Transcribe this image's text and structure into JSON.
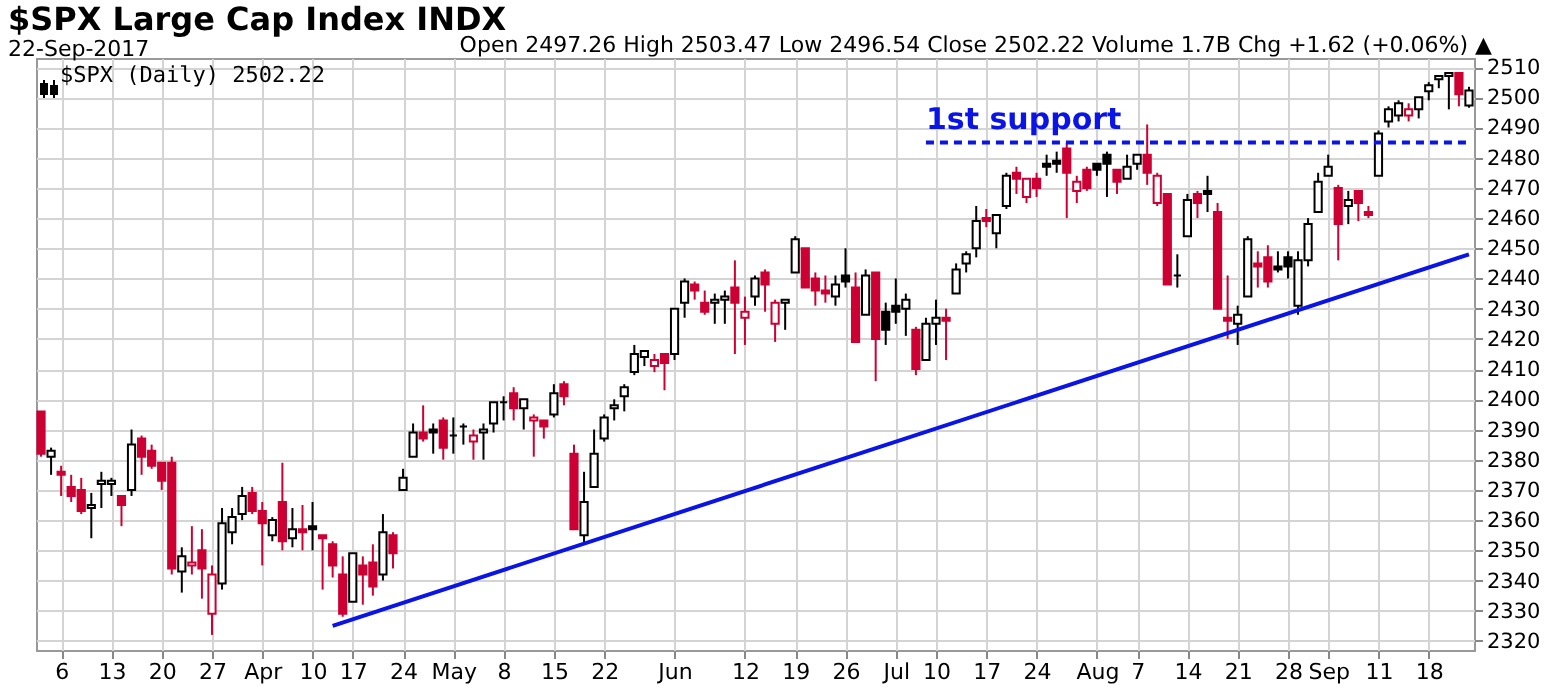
{
  "chart_data": {
    "type": "candlestick",
    "title": "$SPX Large Cap Index INDX",
    "subtitle": "22-Sep-2017",
    "annotations": [
      "Open 2497.26 High 2503.47 Low 2496.54 Close 2502.22 Volume 1.7B Chg +1.62 (+0.06%) ▲",
      "$SPX (Daily) 2502.22"
    ],
    "categories": [
      null,
      null,
      "6",
      null,
      null,
      null,
      null,
      "13",
      null,
      null,
      null,
      null,
      "20",
      null,
      null,
      null,
      null,
      "27",
      null,
      null,
      null,
      null,
      "Apr",
      null,
      null,
      null,
      null,
      "10",
      null,
      null,
      null,
      "17",
      null,
      null,
      null,
      null,
      "24",
      null,
      null,
      null,
      null,
      "May",
      null,
      null,
      null,
      null,
      "8",
      null,
      null,
      null,
      null,
      "15",
      null,
      null,
      null,
      null,
      "22",
      null,
      null,
      null,
      null,
      null,
      null,
      "Jun",
      null,
      null,
      null,
      null,
      null,
      null,
      "12",
      null,
      null,
      null,
      null,
      "19",
      null,
      null,
      null,
      null,
      "26",
      null,
      null,
      null,
      null,
      "Jul",
      null,
      null,
      null,
      "10",
      null,
      null,
      null,
      null,
      "17",
      null,
      null,
      null,
      null,
      "24",
      null,
      null,
      null,
      null,
      null,
      "Aug",
      null,
      null,
      null,
      "7",
      null,
      null,
      null,
      null,
      "14",
      null,
      null,
      null,
      null,
      "21",
      null,
      null,
      null,
      null,
      "28",
      null,
      null,
      null,
      "Sep",
      null,
      null,
      null,
      null,
      "11",
      null,
      null,
      null,
      null,
      "18",
      null,
      null,
      null,
      null
    ],
    "ohlc": [
      [
        2396,
        2396,
        2381,
        2382
      ],
      [
        2381,
        2384,
        2375,
        2383
      ],
      [
        2376,
        2378,
        2368,
        2375
      ],
      [
        2371,
        2375,
        2366,
        2368
      ],
      [
        2370,
        2374,
        2362,
        2363
      ],
      [
        2364,
        2369,
        2354,
        2365
      ],
      [
        2372,
        2376,
        2364,
        2373
      ],
      [
        2372,
        2374,
        2368,
        2373
      ],
      [
        2368,
        2368,
        2358,
        2365
      ],
      [
        2370,
        2390,
        2368,
        2385
      ],
      [
        2387,
        2388,
        2375,
        2381
      ],
      [
        2383,
        2385,
        2377,
        2378
      ],
      [
        2379,
        2379,
        2370,
        2373
      ],
      [
        2379,
        2381,
        2342,
        2344
      ],
      [
        2343,
        2351,
        2336,
        2348
      ],
      [
        2345,
        2358,
        2342,
        2346
      ],
      [
        2350,
        2357,
        2334,
        2344
      ],
      [
        2329,
        2345,
        2322,
        2342
      ],
      [
        2339,
        2364,
        2337,
        2359
      ],
      [
        2356,
        2364,
        2352,
        2361
      ],
      [
        2362,
        2371,
        2360,
        2368
      ],
      [
        2369,
        2371,
        2362,
        2363
      ],
      [
        2363,
        2366,
        2345,
        2359
      ],
      [
        2355,
        2361,
        2353,
        2360
      ],
      [
        2366,
        2379,
        2350,
        2353
      ],
      [
        2354,
        2364,
        2351,
        2357
      ],
      [
        2357,
        2365,
        2350,
        2356
      ],
      [
        2358,
        2366,
        2350,
        2357
      ],
      [
        2355,
        2355,
        2337,
        2354
      ],
      [
        2352,
        2353,
        2341,
        2345
      ],
      [
        2342,
        2348,
        2328,
        2329
      ],
      [
        2333,
        2349,
        2333,
        2349
      ],
      [
        2345,
        2348,
        2332,
        2342
      ],
      [
        2346,
        2352,
        2335,
        2338
      ],
      [
        2342,
        2362,
        2340,
        2356
      ],
      [
        2355,
        2356,
        2344,
        2349
      ],
      [
        2370,
        2377,
        2370,
        2374
      ],
      [
        2381,
        2392,
        2381,
        2389
      ],
      [
        2389,
        2398,
        2386,
        2387
      ],
      [
        2390,
        2392,
        2382,
        2389
      ],
      [
        2393,
        2394,
        2380,
        2384
      ],
      [
        2388,
        2394,
        2382,
        2388
      ],
      [
        2391,
        2392,
        2385,
        2391
      ],
      [
        2386,
        2390,
        2380,
        2388
      ],
      [
        2389,
        2392,
        2380,
        2390
      ],
      [
        2392,
        2399,
        2389,
        2399
      ],
      [
        2399,
        2401,
        2393,
        2399
      ],
      [
        2402,
        2404,
        2393,
        2397
      ],
      [
        2397,
        2400,
        2390,
        2400
      ],
      [
        2393,
        2395,
        2381,
        2394
      ],
      [
        2393,
        2393,
        2387,
        2391
      ],
      [
        2395,
        2405,
        2394,
        2402
      ],
      [
        2405,
        2406,
        2398,
        2401
      ],
      [
        2382,
        2385,
        2357,
        2357
      ],
      [
        2355,
        2376,
        2352,
        2366
      ],
      [
        2371,
        2390,
        2371,
        2382
      ],
      [
        2387,
        2395,
        2386,
        2394
      ],
      [
        2397,
        2400,
        2393,
        2398
      ],
      [
        2401,
        2405,
        2396,
        2404
      ],
      [
        2409,
        2418,
        2408,
        2415
      ],
      [
        2414,
        2416,
        2411,
        2416
      ],
      [
        2411,
        2415,
        2409,
        2413
      ],
      [
        2415,
        2415,
        2403,
        2412
      ],
      [
        2415,
        2430,
        2413,
        2430
      ],
      [
        2432,
        2440,
        2427,
        2439
      ],
      [
        2438,
        2439,
        2433,
        2436
      ],
      [
        2432,
        2436,
        2428,
        2429
      ],
      [
        2432,
        2435,
        2425,
        2433
      ],
      [
        2433,
        2436,
        2425,
        2434
      ],
      [
        2437,
        2446,
        2415,
        2432
      ],
      [
        2427,
        2434,
        2418,
        2429
      ],
      [
        2434,
        2441,
        2431,
        2440
      ],
      [
        2442,
        2443,
        2429,
        2438
      ],
      [
        2425,
        2433,
        2419,
        2432
      ],
      [
        2432,
        2433,
        2423,
        2433
      ],
      [
        2442,
        2454,
        2442,
        2453
      ],
      [
        2450,
        2450,
        2437,
        2437
      ],
      [
        2440,
        2442,
        2431,
        2436
      ],
      [
        2436,
        2441,
        2432,
        2435
      ],
      [
        2434,
        2441,
        2431,
        2438
      ],
      [
        2441,
        2450,
        2437,
        2439
      ],
      [
        2437,
        2442,
        2419,
        2419
      ],
      [
        2428,
        2443,
        2428,
        2441
      ],
      [
        2442,
        2442,
        2406,
        2420
      ],
      [
        2429,
        2432,
        2418,
        2423
      ],
      [
        2431,
        2440,
        2425,
        2429
      ],
      [
        2430,
        2435,
        2421,
        2433
      ],
      [
        2423,
        2424,
        2408,
        2410
      ],
      [
        2413,
        2427,
        2413,
        2425
      ],
      [
        2425,
        2433,
        2418,
        2427
      ],
      [
        2427,
        2430,
        2413,
        2426
      ],
      [
        2435,
        2445,
        2435,
        2443
      ],
      [
        2445,
        2449,
        2442,
        2448
      ],
      [
        2450,
        2464,
        2447,
        2459
      ],
      [
        2460,
        2463,
        2457,
        2459
      ],
      [
        2455,
        2461,
        2450,
        2461
      ],
      [
        2464,
        2475,
        2463,
        2474
      ],
      [
        2475,
        2477,
        2468,
        2473
      ],
      [
        2467,
        2473,
        2465,
        2473
      ],
      [
        2473,
        2475,
        2467,
        2470
      ],
      [
        2478,
        2481,
        2474,
        2477
      ],
      [
        2479,
        2482,
        2475,
        2478
      ],
      [
        2483,
        2485,
        2460,
        2475
      ],
      [
        2469,
        2474,
        2465,
        2472
      ],
      [
        2476,
        2477,
        2469,
        2470
      ],
      [
        2478,
        2478,
        2474,
        2476
      ],
      [
        2481,
        2482,
        2467,
        2478
      ],
      [
        2476,
        2476,
        2468,
        2472
      ],
      [
        2473,
        2481,
        2473,
        2477
      ],
      [
        2478,
        2481,
        2476,
        2481
      ],
      [
        2481,
        2491,
        2471,
        2475
      ],
      [
        2465,
        2475,
        2464,
        2474
      ],
      [
        2468,
        2468,
        2438,
        2438
      ],
      [
        2441,
        2448,
        2437,
        2441
      ],
      [
        2454,
        2468,
        2454,
        2466
      ],
      [
        2468,
        2469,
        2460,
        2465
      ],
      [
        2469,
        2474,
        2462,
        2468
      ],
      [
        2462,
        2465,
        2430,
        2430
      ],
      [
        2427,
        2441,
        2420,
        2426
      ],
      [
        2425,
        2431,
        2418,
        2428
      ],
      [
        2434,
        2454,
        2434,
        2453
      ],
      [
        2445,
        2449,
        2437,
        2444
      ],
      [
        2447,
        2451,
        2437,
        2439
      ],
      [
        2444,
        2449,
        2442,
        2443
      ],
      [
        2447,
        2449,
        2440,
        2444
      ],
      [
        2431,
        2449,
        2428,
        2446
      ],
      [
        2446,
        2460,
        2444,
        2458
      ],
      [
        2462,
        2475,
        2462,
        2472
      ],
      [
        2474,
        2481,
        2474,
        2477
      ],
      [
        2470,
        2471,
        2446,
        2458
      ],
      [
        2464,
        2469,
        2458,
        2466
      ],
      [
        2469,
        2469,
        2459,
        2465
      ],
      [
        2462,
        2464,
        2460,
        2461
      ],
      [
        2474,
        2489,
        2474,
        2488
      ],
      [
        2492,
        2497,
        2490,
        2496
      ],
      [
        2494,
        2499,
        2492,
        2498
      ],
      [
        2494,
        2498,
        2492,
        2496
      ],
      [
        2496,
        2500,
        2493,
        2500
      ],
      [
        2502,
        2505,
        2499,
        2504
      ],
      [
        2506,
        2507,
        2503,
        2507
      ],
      [
        2507,
        2508,
        2496,
        2508
      ],
      [
        2508,
        2508,
        2497,
        2501
      ],
      [
        2497.26,
        2503.47,
        2496.54,
        2502.22
      ]
    ],
    "colors": [
      "#cc0033",
      "#000000",
      "#cc0033",
      "#cc0033",
      "#cc0033",
      "#000000",
      "#000000",
      "#000000",
      "#cc0033",
      "#000000",
      "#cc0033",
      "#cc0033",
      "#cc0033",
      "#cc0033",
      "#000000",
      "#cc0033",
      "#cc0033",
      "#cc0033",
      "#000000",
      "#000000",
      "#000000",
      "#cc0033",
      "#cc0033",
      "#000000",
      "#cc0033",
      "#000000",
      "#cc0033",
      "#000000",
      "#cc0033",
      "#cc0033",
      "#cc0033",
      "#000000",
      "#cc0033",
      "#cc0033",
      "#000000",
      "#cc0033",
      "#000000",
      "#000000",
      "#cc0033",
      "#000000",
      "#cc0033",
      "#000000",
      "#000000",
      "#cc0033",
      "#000000",
      "#000000",
      "#000000",
      "#cc0033",
      "#000000",
      "#cc0033",
      "#cc0033",
      "#000000",
      "#cc0033",
      "#cc0033",
      "#000000",
      "#000000",
      "#000000",
      "#000000",
      "#000000",
      "#000000",
      "#000000",
      "#cc0033",
      "#cc0033",
      "#000000",
      "#000000",
      "#cc0033",
      "#cc0033",
      "#000000",
      "#000000",
      "#cc0033",
      "#cc0033",
      "#000000",
      "#cc0033",
      "#cc0033",
      "#000000",
      "#000000",
      "#cc0033",
      "#cc0033",
      "#cc0033",
      "#000000",
      "#000000",
      "#cc0033",
      "#000000",
      "#cc0033",
      "#000000",
      "#000000",
      "#000000",
      "#cc0033",
      "#000000",
      "#000000",
      "#cc0033",
      "#000000",
      "#000000",
      "#000000",
      "#cc0033",
      "#000000",
      "#000000",
      "#cc0033",
      "#cc0033",
      "#cc0033",
      "#000000",
      "#000000",
      "#cc0033",
      "#cc0033",
      "#cc0033",
      "#000000",
      "#000000",
      "#cc0033",
      "#000000",
      "#000000",
      "#cc0033",
      "#cc0033",
      "#cc0033",
      "#000000",
      "#000000",
      "#cc0033",
      "#000000",
      "#cc0033",
      "#cc0033",
      "#000000",
      "#000000",
      "#cc0033",
      "#cc0033",
      "#000000",
      "#000000",
      "#000000",
      "#000000",
      "#000000",
      "#000000",
      "#cc0033",
      "#000000",
      "#cc0033",
      "#cc0033",
      "#000000",
      "#000000",
      "#000000",
      "#cc0033",
      "#000000",
      "#000000",
      "#000000",
      "#000000",
      "#cc0033",
      "#000000"
    ],
    "series": [
      {
        "type": "line",
        "color": "#0a14e6",
        "values": [
          null,
          null,
          null,
          null,
          null,
          null,
          null,
          null,
          null,
          null,
          null,
          null,
          null,
          null,
          null,
          null,
          null,
          null,
          null,
          null,
          null,
          null,
          null,
          null,
          null,
          null,
          null,
          null,
          null,
          2325,
          null,
          null,
          null,
          null,
          null,
          null,
          null,
          null,
          null,
          null,
          null,
          null,
          null,
          null,
          null,
          null,
          null,
          null,
          null,
          null,
          null,
          null,
          null,
          null,
          null,
          null,
          null,
          null,
          null,
          null,
          null,
          null,
          null,
          null,
          null,
          null,
          null,
          null,
          null,
          null,
          null,
          null,
          null,
          null,
          null,
          null,
          null,
          null,
          null,
          null,
          null,
          null,
          null,
          null,
          null,
          null,
          null,
          null,
          null,
          null,
          null,
          null,
          null,
          null,
          null,
          null,
          null,
          null,
          null,
          null,
          null,
          null,
          null,
          null,
          null,
          null,
          null,
          null,
          null,
          null,
          null,
          null,
          null,
          null,
          null,
          null,
          null,
          null,
          null,
          null,
          null,
          null,
          null,
          null,
          null,
          null,
          null,
          null,
          null,
          null,
          null,
          null,
          null,
          null,
          null,
          null,
          null,
          null,
          null,
          null,
          null,
          null,
          2448
        ]
      },
      {
        "type": "line",
        "name": "1st support",
        "color": "#0a14e6",
        "line_style": "dashed",
        "values": [
          null,
          null,
          null,
          null,
          null,
          null,
          null,
          null,
          null,
          null,
          null,
          null,
          null,
          null,
          null,
          null,
          null,
          null,
          null,
          null,
          null,
          null,
          null,
          null,
          null,
          null,
          null,
          null,
          null,
          null,
          null,
          null,
          null,
          null,
          null,
          null,
          null,
          null,
          null,
          null,
          null,
          null,
          null,
          null,
          null,
          null,
          null,
          null,
          null,
          null,
          null,
          null,
          null,
          null,
          null,
          null,
          null,
          null,
          null,
          null,
          null,
          null,
          null,
          null,
          null,
          null,
          null,
          null,
          null,
          null,
          null,
          null,
          null,
          null,
          null,
          null,
          null,
          null,
          null,
          null,
          null,
          null,
          null,
          null,
          null,
          null,
          null,
          null,
          2485,
          null,
          null,
          null,
          null,
          null,
          null,
          null,
          null,
          null,
          null,
          null,
          null,
          null,
          null,
          null,
          null,
          null,
          null,
          null,
          null,
          null,
          null,
          null,
          null,
          null,
          null,
          null,
          null,
          null,
          null,
          null,
          null,
          null,
          null,
          null,
          null,
          null,
          null,
          null,
          null,
          null,
          null,
          null,
          null,
          null,
          null,
          null,
          null,
          null,
          null,
          null,
          null,
          null,
          2485
        ]
      }
    ],
    "ylim": [
      2317,
      2513
    ],
    "yticks": [
      2320,
      2330,
      2340,
      2350,
      2360,
      2370,
      2380,
      2390,
      2400,
      2410,
      2420,
      2430,
      2440,
      2450,
      2460,
      2470,
      2480,
      2490,
      2500,
      2510
    ],
    "grid": true
  }
}
